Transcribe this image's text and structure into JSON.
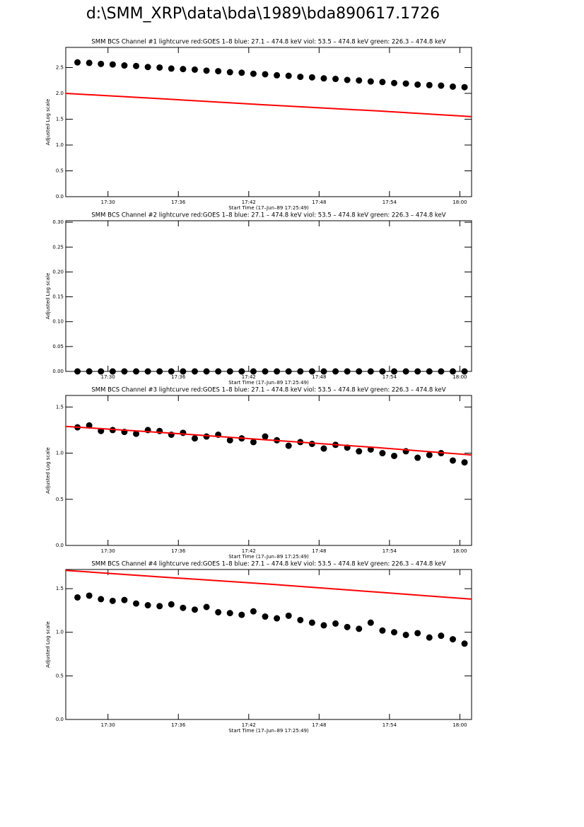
{
  "page_title": "d:\\SMM_XRP\\data\\bda\\1989\\bda890617.1726",
  "chart_data": [
    {
      "type": "scatter",
      "title": "SMM BCS Channel #1 lightcurve  red:GOES 1–8  blue: 27.1 – 474.8 keV  viol: 53.5 – 474.8 keV  green: 226.3 – 474.8 keV",
      "x_label": "Start Time (17–Jun–89 17:25:49)",
      "y_label": "Adjusted Log scale",
      "xlim": [
        26.4,
        61
      ],
      "xticks": [
        {
          "value": 30,
          "label": "17:30"
        },
        {
          "value": 36,
          "label": "17:36"
        },
        {
          "value": 42,
          "label": "17:42"
        },
        {
          "value": 48,
          "label": "17:48"
        },
        {
          "value": 54,
          "label": "17:54"
        },
        {
          "value": 60,
          "label": "18:00"
        }
      ],
      "ylim": [
        0,
        2.89
      ],
      "yticks": [
        {
          "value": 0,
          "label": "0.0"
        },
        0.5,
        {
          "value": 1,
          "label": "1.0"
        },
        1.5,
        {
          "value": 2,
          "label": "2.0"
        },
        2.5
      ],
      "x": [
        27.4,
        28.4,
        29.4,
        30.4,
        31.4,
        32.4,
        33.4,
        34.4,
        35.4,
        36.4,
        37.4,
        38.4,
        39.4,
        40.4,
        41.4,
        42.4,
        43.4,
        44.4,
        45.4,
        46.4,
        47.4,
        48.4,
        49.4,
        50.4,
        51.4,
        52.4,
        53.4,
        54.4,
        55.4,
        56.4,
        57.4,
        58.4,
        59.4,
        60.4
      ],
      "series": [
        {
          "color": "#000000",
          "values": [
            2.6,
            2.59,
            2.57,
            2.56,
            2.54,
            2.53,
            2.51,
            2.5,
            2.48,
            2.47,
            2.46,
            2.44,
            2.43,
            2.41,
            2.4,
            2.38,
            2.37,
            2.35,
            2.34,
            2.32,
            2.31,
            2.29,
            2.28,
            2.26,
            2.25,
            2.23,
            2.22,
            2.2,
            2.19,
            2.17,
            2.16,
            2.15,
            2.13,
            2.12
          ]
        },
        {
          "color": "#ff0000",
          "x": [
            26.4,
            35,
            44,
            53,
            61
          ],
          "values": [
            2.0,
            1.89,
            1.77,
            1.66,
            1.55
          ]
        }
      ]
    },
    {
      "type": "scatter",
      "title": "SMM BCS Channel #2 lightcurve  red:GOES 1–8  blue: 27.1 – 474.8 keV  viol: 53.5 – 474.8 keV  green: 226.3 – 474.8 keV",
      "x_label": "Start Time (17–Jun–89 17:25:49)",
      "y_label": "Adjusted Log scale",
      "xlim": [
        26.4,
        61
      ],
      "xticks": [
        {
          "value": 30,
          "label": "17:30"
        },
        {
          "value": 36,
          "label": "17:36"
        },
        {
          "value": 42,
          "label": "17:42"
        },
        {
          "value": 48,
          "label": "17:48"
        },
        {
          "value": 54,
          "label": "17:54"
        },
        {
          "value": 60,
          "label": "18:00"
        }
      ],
      "ylim": [
        0,
        0.303
      ],
      "yticks": [
        {
          "value": 0,
          "label": "0.00"
        },
        0.05,
        {
          "value": 0.1,
          "label": "0.10"
        },
        0.15,
        {
          "value": 0.2,
          "label": "0.20"
        },
        0.25,
        {
          "value": 0.3,
          "label": "0.30"
        }
      ],
      "x": [
        27.4,
        28.4,
        29.4,
        30.4,
        31.4,
        32.4,
        33.4,
        34.4,
        35.4,
        36.4,
        37.4,
        38.4,
        39.4,
        40.4,
        41.4,
        42.4,
        43.4,
        44.4,
        45.4,
        46.4,
        47.4,
        48.4,
        49.4,
        50.4,
        51.4,
        52.4,
        53.4,
        54.4,
        55.4,
        56.4,
        57.4,
        58.4,
        59.4,
        60.4
      ],
      "series": [
        {
          "color": "#000000",
          "values": [
            0,
            0,
            0,
            0,
            0,
            0,
            0,
            0,
            0,
            0,
            0,
            0,
            0,
            0,
            0,
            0,
            0,
            0,
            0,
            0,
            0,
            0,
            0,
            0,
            0,
            0,
            0,
            0,
            0,
            0,
            0,
            0,
            0,
            0
          ]
        }
      ]
    },
    {
      "type": "scatter",
      "title": "SMM BCS Channel #3 lightcurve  red:GOES 1–8  blue: 27.1 – 474.8 keV  viol: 53.5 – 474.8 keV  green: 226.3 – 474.8 keV",
      "x_label": "Start Time (17–Jun–89 17:25:49)",
      "y_label": "Adjusted Log scale",
      "xlim": [
        26.4,
        61
      ],
      "xticks": [
        {
          "value": 30,
          "label": "17:30"
        },
        {
          "value": 36,
          "label": "17:36"
        },
        {
          "value": 42,
          "label": "17:42"
        },
        {
          "value": 48,
          "label": "17:48"
        },
        {
          "value": 54,
          "label": "17:54"
        },
        {
          "value": 60,
          "label": "18:00"
        }
      ],
      "ylim": [
        0,
        1.625
      ],
      "yticks": [
        {
          "value": 0,
          "label": "0.0"
        },
        0.5,
        {
          "value": 1,
          "label": "1.0"
        },
        1.5
      ],
      "x": [
        27.4,
        28.4,
        29.4,
        30.4,
        31.4,
        32.4,
        33.4,
        34.4,
        35.4,
        36.4,
        37.4,
        38.4,
        39.4,
        40.4,
        41.4,
        42.4,
        43.4,
        44.4,
        45.4,
        46.4,
        47.4,
        48.4,
        49.4,
        50.4,
        51.4,
        52.4,
        53.4,
        54.4,
        55.4,
        56.4,
        57.4,
        58.4,
        59.4,
        60.4
      ],
      "series": [
        {
          "color": "#000000",
          "values": [
            1.28,
            1.3,
            1.24,
            1.25,
            1.23,
            1.21,
            1.25,
            1.24,
            1.2,
            1.22,
            1.16,
            1.18,
            1.2,
            1.14,
            1.16,
            1.12,
            1.18,
            1.14,
            1.08,
            1.12,
            1.1,
            1.05,
            1.09,
            1.06,
            1.02,
            1.04,
            1.0,
            0.97,
            1.02,
            0.95,
            0.98,
            1.0,
            0.92,
            0.9
          ]
        },
        {
          "color": "#ff0000",
          "x": [
            26.4,
            35,
            44,
            53,
            61
          ],
          "values": [
            1.29,
            1.22,
            1.14,
            1.06,
            0.98
          ]
        }
      ]
    },
    {
      "type": "scatter",
      "title": "SMM BCS Channel #4 lightcurve  red:GOES 1–8  blue: 27.1 – 474.8 keV  viol: 53.5 – 474.8 keV  green: 226.3 – 474.8 keV",
      "x_label": "Start Time (17–Jun–89 17:25:49)",
      "y_label": "Adjusted Log scale",
      "xlim": [
        26.4,
        61
      ],
      "xticks": [
        {
          "value": 30,
          "label": "17:30"
        },
        {
          "value": 36,
          "label": "17:36"
        },
        {
          "value": 42,
          "label": "17:42"
        },
        {
          "value": 48,
          "label": "17:48"
        },
        {
          "value": 54,
          "label": "17:54"
        },
        {
          "value": 60,
          "label": "18:00"
        }
      ],
      "ylim": [
        0,
        1.72
      ],
      "yticks": [
        {
          "value": 0,
          "label": "0.0"
        },
        0.5,
        {
          "value": 1,
          "label": "1.0"
        },
        1.5
      ],
      "x": [
        27.4,
        28.4,
        29.4,
        30.4,
        31.4,
        32.4,
        33.4,
        34.4,
        35.4,
        36.4,
        37.4,
        38.4,
        39.4,
        40.4,
        41.4,
        42.4,
        43.4,
        44.4,
        45.4,
        46.4,
        47.4,
        48.4,
        49.4,
        50.4,
        51.4,
        52.4,
        53.4,
        54.4,
        55.4,
        56.4,
        57.4,
        58.4,
        59.4,
        60.4
      ],
      "series": [
        {
          "color": "#000000",
          "values": [
            1.4,
            1.42,
            1.38,
            1.36,
            1.37,
            1.33,
            1.31,
            1.3,
            1.32,
            1.28,
            1.26,
            1.29,
            1.23,
            1.22,
            1.2,
            1.24,
            1.18,
            1.16,
            1.19,
            1.14,
            1.11,
            1.08,
            1.1,
            1.06,
            1.04,
            1.11,
            1.02,
            1.0,
            0.97,
            0.99,
            0.94,
            0.96,
            0.92,
            0.87
          ]
        },
        {
          "color": "#ff0000",
          "x": [
            26.4,
            35,
            44,
            53,
            61
          ],
          "values": [
            1.71,
            1.63,
            1.55,
            1.46,
            1.38
          ]
        }
      ]
    }
  ]
}
